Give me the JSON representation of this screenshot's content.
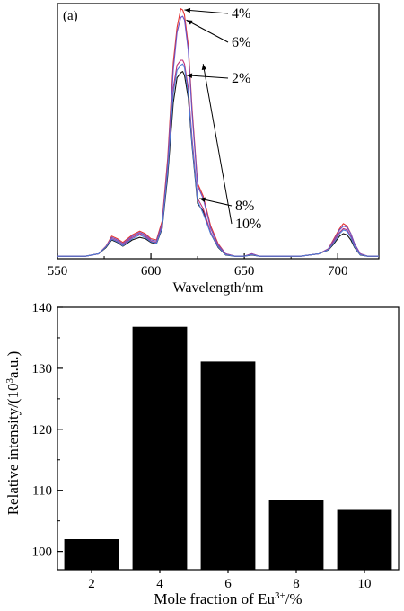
{
  "chart_data": [
    {
      "type": "line",
      "panel_label": "(a)",
      "xlabel": "Wavelength/nm",
      "ylabel": "",
      "xlim": [
        550,
        722
      ],
      "ylim": [
        0,
        1.0
      ],
      "xticks": [
        550,
        600,
        650,
        700
      ],
      "x": [
        550,
        565,
        572,
        576,
        579,
        582,
        585,
        590,
        594,
        597,
        600,
        603,
        606,
        609,
        612,
        614,
        616,
        617,
        618,
        620,
        622,
        625,
        628,
        632,
        636,
        640,
        645,
        650,
        654,
        658,
        663,
        670,
        680,
        690,
        695,
        698,
        701,
        703,
        705,
        707,
        709,
        712,
        716,
        722
      ],
      "series": [
        {
          "name": "4%",
          "color": "#e23030",
          "values": [
            0.01,
            0.01,
            0.02,
            0.05,
            0.09,
            0.08,
            0.065,
            0.095,
            0.11,
            0.1,
            0.08,
            0.075,
            0.15,
            0.4,
            0.78,
            0.92,
            0.995,
            0.99,
            0.97,
            0.85,
            0.6,
            0.3,
            0.25,
            0.13,
            0.06,
            0.02,
            0.01,
            0.01,
            0.02,
            0.01,
            0.01,
            0.01,
            0.01,
            0.02,
            0.04,
            0.08,
            0.12,
            0.14,
            0.13,
            0.1,
            0.06,
            0.02,
            0.01,
            0.01
          ]
        },
        {
          "name": "6%",
          "color": "#6a54c8",
          "values": [
            0.01,
            0.01,
            0.02,
            0.05,
            0.085,
            0.075,
            0.06,
            0.09,
            0.105,
            0.095,
            0.075,
            0.07,
            0.14,
            0.38,
            0.75,
            0.9,
            0.96,
            0.965,
            0.95,
            0.83,
            0.58,
            0.29,
            0.24,
            0.12,
            0.055,
            0.02,
            0.01,
            0.01,
            0.02,
            0.01,
            0.01,
            0.01,
            0.01,
            0.02,
            0.04,
            0.075,
            0.115,
            0.13,
            0.125,
            0.1,
            0.06,
            0.02,
            0.01,
            0.01
          ]
        },
        {
          "name": "2%",
          "color": "#111111",
          "values": [
            0.01,
            0.01,
            0.02,
            0.045,
            0.075,
            0.065,
            0.05,
            0.075,
            0.085,
            0.08,
            0.065,
            0.06,
            0.12,
            0.33,
            0.62,
            0.72,
            0.74,
            0.745,
            0.73,
            0.64,
            0.45,
            0.22,
            0.19,
            0.1,
            0.045,
            0.015,
            0.01,
            0.01,
            0.015,
            0.01,
            0.01,
            0.01,
            0.01,
            0.02,
            0.035,
            0.06,
            0.09,
            0.1,
            0.095,
            0.075,
            0.045,
            0.015,
            0.01,
            0.01
          ]
        },
        {
          "name": "8%",
          "color": "#c0307a",
          "values": [
            0.01,
            0.01,
            0.02,
            0.05,
            0.08,
            0.07,
            0.055,
            0.085,
            0.1,
            0.09,
            0.07,
            0.065,
            0.13,
            0.36,
            0.68,
            0.77,
            0.79,
            0.79,
            0.775,
            0.68,
            0.48,
            0.24,
            0.2,
            0.105,
            0.05,
            0.018,
            0.01,
            0.01,
            0.018,
            0.01,
            0.01,
            0.01,
            0.01,
            0.02,
            0.038,
            0.07,
            0.105,
            0.12,
            0.115,
            0.09,
            0.05,
            0.018,
            0.01,
            0.01
          ]
        },
        {
          "name": "10%",
          "color": "#4f7bd8",
          "values": [
            0.01,
            0.01,
            0.02,
            0.048,
            0.078,
            0.068,
            0.052,
            0.08,
            0.095,
            0.085,
            0.068,
            0.062,
            0.125,
            0.35,
            0.66,
            0.75,
            0.77,
            0.775,
            0.76,
            0.66,
            0.46,
            0.23,
            0.18,
            0.1,
            0.048,
            0.016,
            0.01,
            0.01,
            0.016,
            0.01,
            0.01,
            0.01,
            0.01,
            0.02,
            0.036,
            0.065,
            0.1,
            0.115,
            0.11,
            0.085,
            0.048,
            0.016,
            0.01,
            0.01
          ]
        }
      ],
      "annotations": [
        "4%",
        "6%",
        "2%",
        "8%",
        "10%"
      ]
    },
    {
      "type": "bar",
      "categories": [
        "2",
        "4",
        "6",
        "8",
        "10"
      ],
      "values": [
        102,
        136.8,
        131.1,
        108.4,
        106.8
      ],
      "xlabel_main": "Mole fraction of Eu",
      "xlabel_sup": "3+",
      "xlabel_tail": "/%",
      "ylabel_main": "Relative intensity/(10",
      "ylabel_sup": "3",
      "ylabel_tail": "a.u.)",
      "ylim": [
        97,
        140
      ],
      "yticks": [
        100,
        110,
        120,
        130,
        140
      ],
      "bar_color": "#000000"
    }
  ]
}
